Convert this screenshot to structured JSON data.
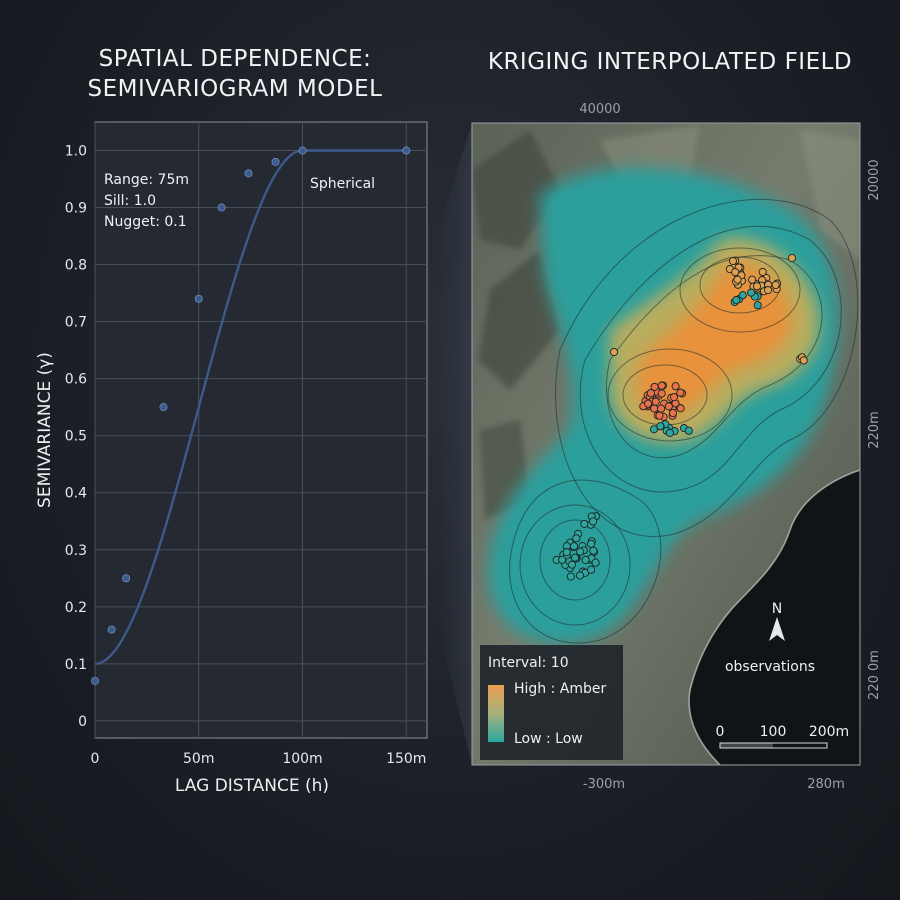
{
  "chart_data": [
    {
      "type": "scatter",
      "title": "SPATIAL DEPENDENCE:\nSEMIVARIOGRAM MODEL",
      "xlabel": "LAG DISTANCE (h)",
      "ylabel": "SEMIVARIANCE (γ)",
      "xlim": [
        0,
        160
      ],
      "ylim": [
        -0.03,
        1.05
      ],
      "xticks": [
        {
          "value": 0,
          "label": "0"
        },
        {
          "value": 50,
          "label": "50m"
        },
        {
          "value": 100,
          "label": "100m"
        },
        {
          "value": 150,
          "label": "150m"
        }
      ],
      "yticks": [
        {
          "value": 0,
          "label": "0"
        },
        {
          "value": 0.1,
          "label": "0.1"
        },
        {
          "value": 0.2,
          "label": "0.2"
        },
        {
          "value": 0.3,
          "label": "0.3"
        },
        {
          "value": 0.4,
          "label": "0.4"
        },
        {
          "value": 0.5,
          "label": "0.5"
        },
        {
          "value": 0.6,
          "label": "0.6"
        },
        {
          "value": 0.7,
          "label": "0.7"
        },
        {
          "value": 0.8,
          "label": "0.8"
        },
        {
          "value": 0.9,
          "label": "0.9"
        },
        {
          "value": 1.0,
          "label": "1.0"
        }
      ],
      "grid": true,
      "model": {
        "name": "Spherical",
        "range": 75,
        "sill": 1.0,
        "nugget": 0.1,
        "curve_label": "Spherical"
      },
      "annotations": [
        "Range: 75m",
        "Sill: 1.0",
        "Nugget: 0.1"
      ],
      "points": [
        {
          "x": 0,
          "y": 0.07
        },
        {
          "x": 8,
          "y": 0.16
        },
        {
          "x": 15,
          "y": 0.25
        },
        {
          "x": 33,
          "y": 0.55
        },
        {
          "x": 50,
          "y": 0.74
        },
        {
          "x": 61,
          "y": 0.9
        },
        {
          "x": 74,
          "y": 0.96
        },
        {
          "x": 87,
          "y": 0.98
        },
        {
          "x": 100,
          "y": 1.0
        },
        {
          "x": 150,
          "y": 1.0
        }
      ],
      "colors": {
        "curve": "#3c5a8a",
        "points": "#3c5a8a"
      }
    },
    {
      "type": "heatmap",
      "title": "KRIGING INTERPOLATED FIELD",
      "top_tick": "40000",
      "bottom_ticks": [
        "-300m",
        "280m"
      ],
      "right_ticks": [
        "20000",
        "220m",
        "220 0m"
      ],
      "legend": {
        "interval_label": "Interval: 10",
        "high_label": "High : Amber",
        "low_label": "Low : Low",
        "colors": {
          "high": "#e8a050",
          "low": "#2aa8a0"
        }
      },
      "north_label": "N",
      "observations_label": "observations",
      "scale_bar": {
        "labels": [
          "0",
          "100",
          "200m"
        ]
      },
      "colors": {
        "high": "#e8923a",
        "mid": "#b9ad5e",
        "low": "#2a9f9c",
        "terrain": "#6b7264",
        "sea": "#0f1417"
      }
    }
  ]
}
